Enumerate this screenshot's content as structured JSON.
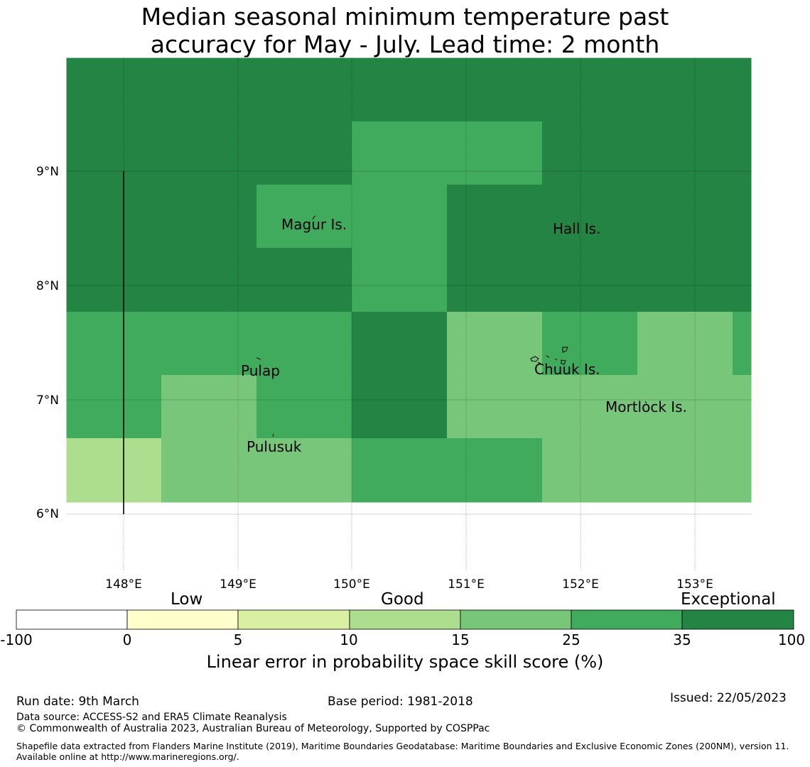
{
  "title_line1": "Median seasonal minimum temperature past",
  "title_line2": "accuracy for May - July. Lead time: 2 month",
  "map": {
    "lon_ticks": [
      "148°E",
      "149°E",
      "150°E",
      "151°E",
      "152°E",
      "153°E"
    ],
    "lat_ticks": [
      "9°N",
      "8°N",
      "7°N",
      "6°N"
    ],
    "places": [
      "Magur Is.",
      "Hall Is.",
      "Pulap",
      "Chuuk Is.",
      "Mortlock Is.",
      "Pulusuk"
    ],
    "grid_skill_categories": [
      [
        6,
        6,
        6,
        6,
        6,
        6,
        6,
        6
      ],
      [
        6,
        6,
        6,
        5,
        5,
        6,
        6,
        6
      ],
      [
        6,
        6,
        5,
        5,
        6,
        6,
        6,
        6
      ],
      [
        6,
        6,
        6,
        5,
        6,
        6,
        6,
        6
      ],
      [
        5,
        5,
        5,
        6,
        4,
        5,
        4,
        5
      ],
      [
        5,
        4,
        5,
        6,
        4,
        4,
        4,
        4
      ],
      [
        3,
        4,
        4,
        5,
        5,
        4,
        4,
        4
      ]
    ],
    "colors": {
      "exceptional_dark": "#238443",
      "good_high": "#41ab5d",
      "good_mid": "#78c679",
      "low_mid": "#d9f0a3"
    }
  },
  "colorbar": {
    "category_labels": [
      "Low",
      "Good",
      "Exceptional"
    ],
    "ticks": [
      "-100",
      "0",
      "5",
      "10",
      "15",
      "25",
      "35",
      "100"
    ],
    "colors": [
      "#ffffff",
      "#ffffcc",
      "#d9f0a3",
      "#addd8e",
      "#78c679",
      "#41ab5d",
      "#238443"
    ],
    "title": "Linear error in probability space skill score (%)"
  },
  "footer": {
    "run_date": "Run date: 9th March",
    "base_period": "Base period: 1981-2018",
    "issued": "Issued: 22/05/2023",
    "data_source": "Data source: ACCESS-S2 and ERA5 Climate Reanalysis",
    "copyright": "© Commonwealth of Australia 2023, Australian Bureau of Meteorology, Supported by COSPPac",
    "shapefile": "Shapefile data extracted from Flanders Marine Institute (2019), Maritime Boundaries Geodatabase: Maritime Boundaries and Exclusive Economic Zones (200NM), version 11. Available online at http://www.marineregions.org/."
  }
}
